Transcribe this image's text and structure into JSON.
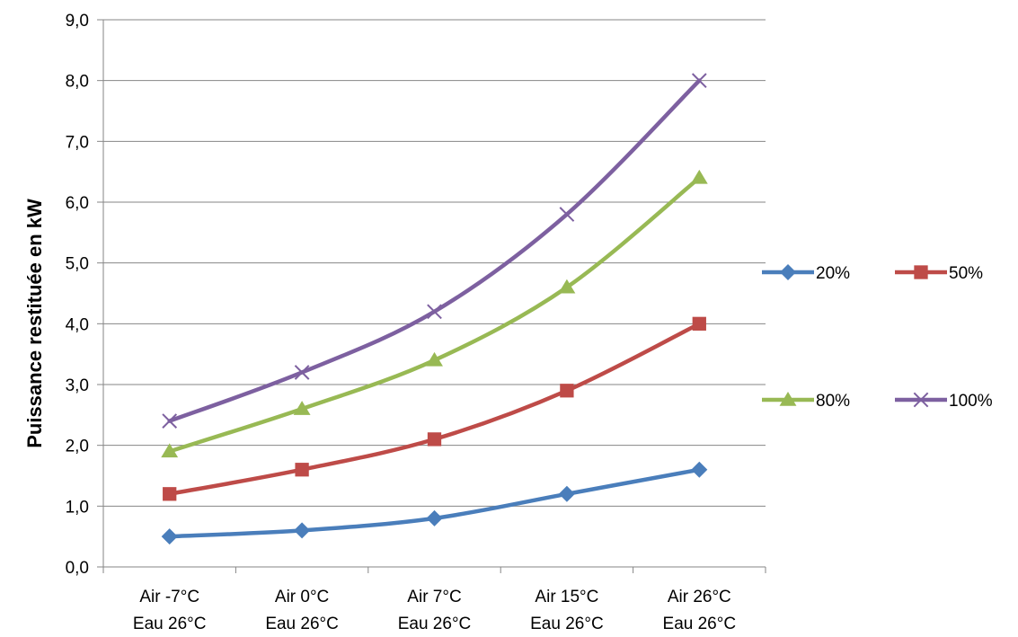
{
  "chart_data": {
    "type": "line",
    "ylabel": "Puissance restituée en kW",
    "ylim": [
      0,
      9
    ],
    "ytick_step": 1,
    "ytick_labels": [
      "0,0",
      "1,0",
      "2,0",
      "3,0",
      "4,0",
      "5,0",
      "6,0",
      "7,0",
      "8,0",
      "9,0"
    ],
    "grid": true,
    "legend_position": "right",
    "categories": [
      [
        "Air -7°C",
        "Eau 26°C"
      ],
      [
        "Air 0°C",
        "Eau 26°C"
      ],
      [
        "Air 7°C",
        "Eau 26°C"
      ],
      [
        "Air 15°C",
        "Eau 26°C"
      ],
      [
        "Air 26°C",
        "Eau 26°C"
      ]
    ],
    "series": [
      {
        "name": "20%",
        "values": [
          0.5,
          0.6,
          0.8,
          1.2,
          1.6
        ],
        "color": "#4A7EBB",
        "marker": "diamond"
      },
      {
        "name": "50%",
        "values": [
          1.2,
          1.6,
          2.1,
          2.9,
          4.0
        ],
        "color": "#BE4B48",
        "marker": "square"
      },
      {
        "name": "80%",
        "values": [
          1.9,
          2.6,
          3.4,
          4.6,
          6.4
        ],
        "color": "#98B954",
        "marker": "triangle"
      },
      {
        "name": "100%",
        "values": [
          2.4,
          3.2,
          4.2,
          5.8,
          8.0
        ],
        "color": "#7D60A0",
        "marker": "x"
      }
    ]
  }
}
